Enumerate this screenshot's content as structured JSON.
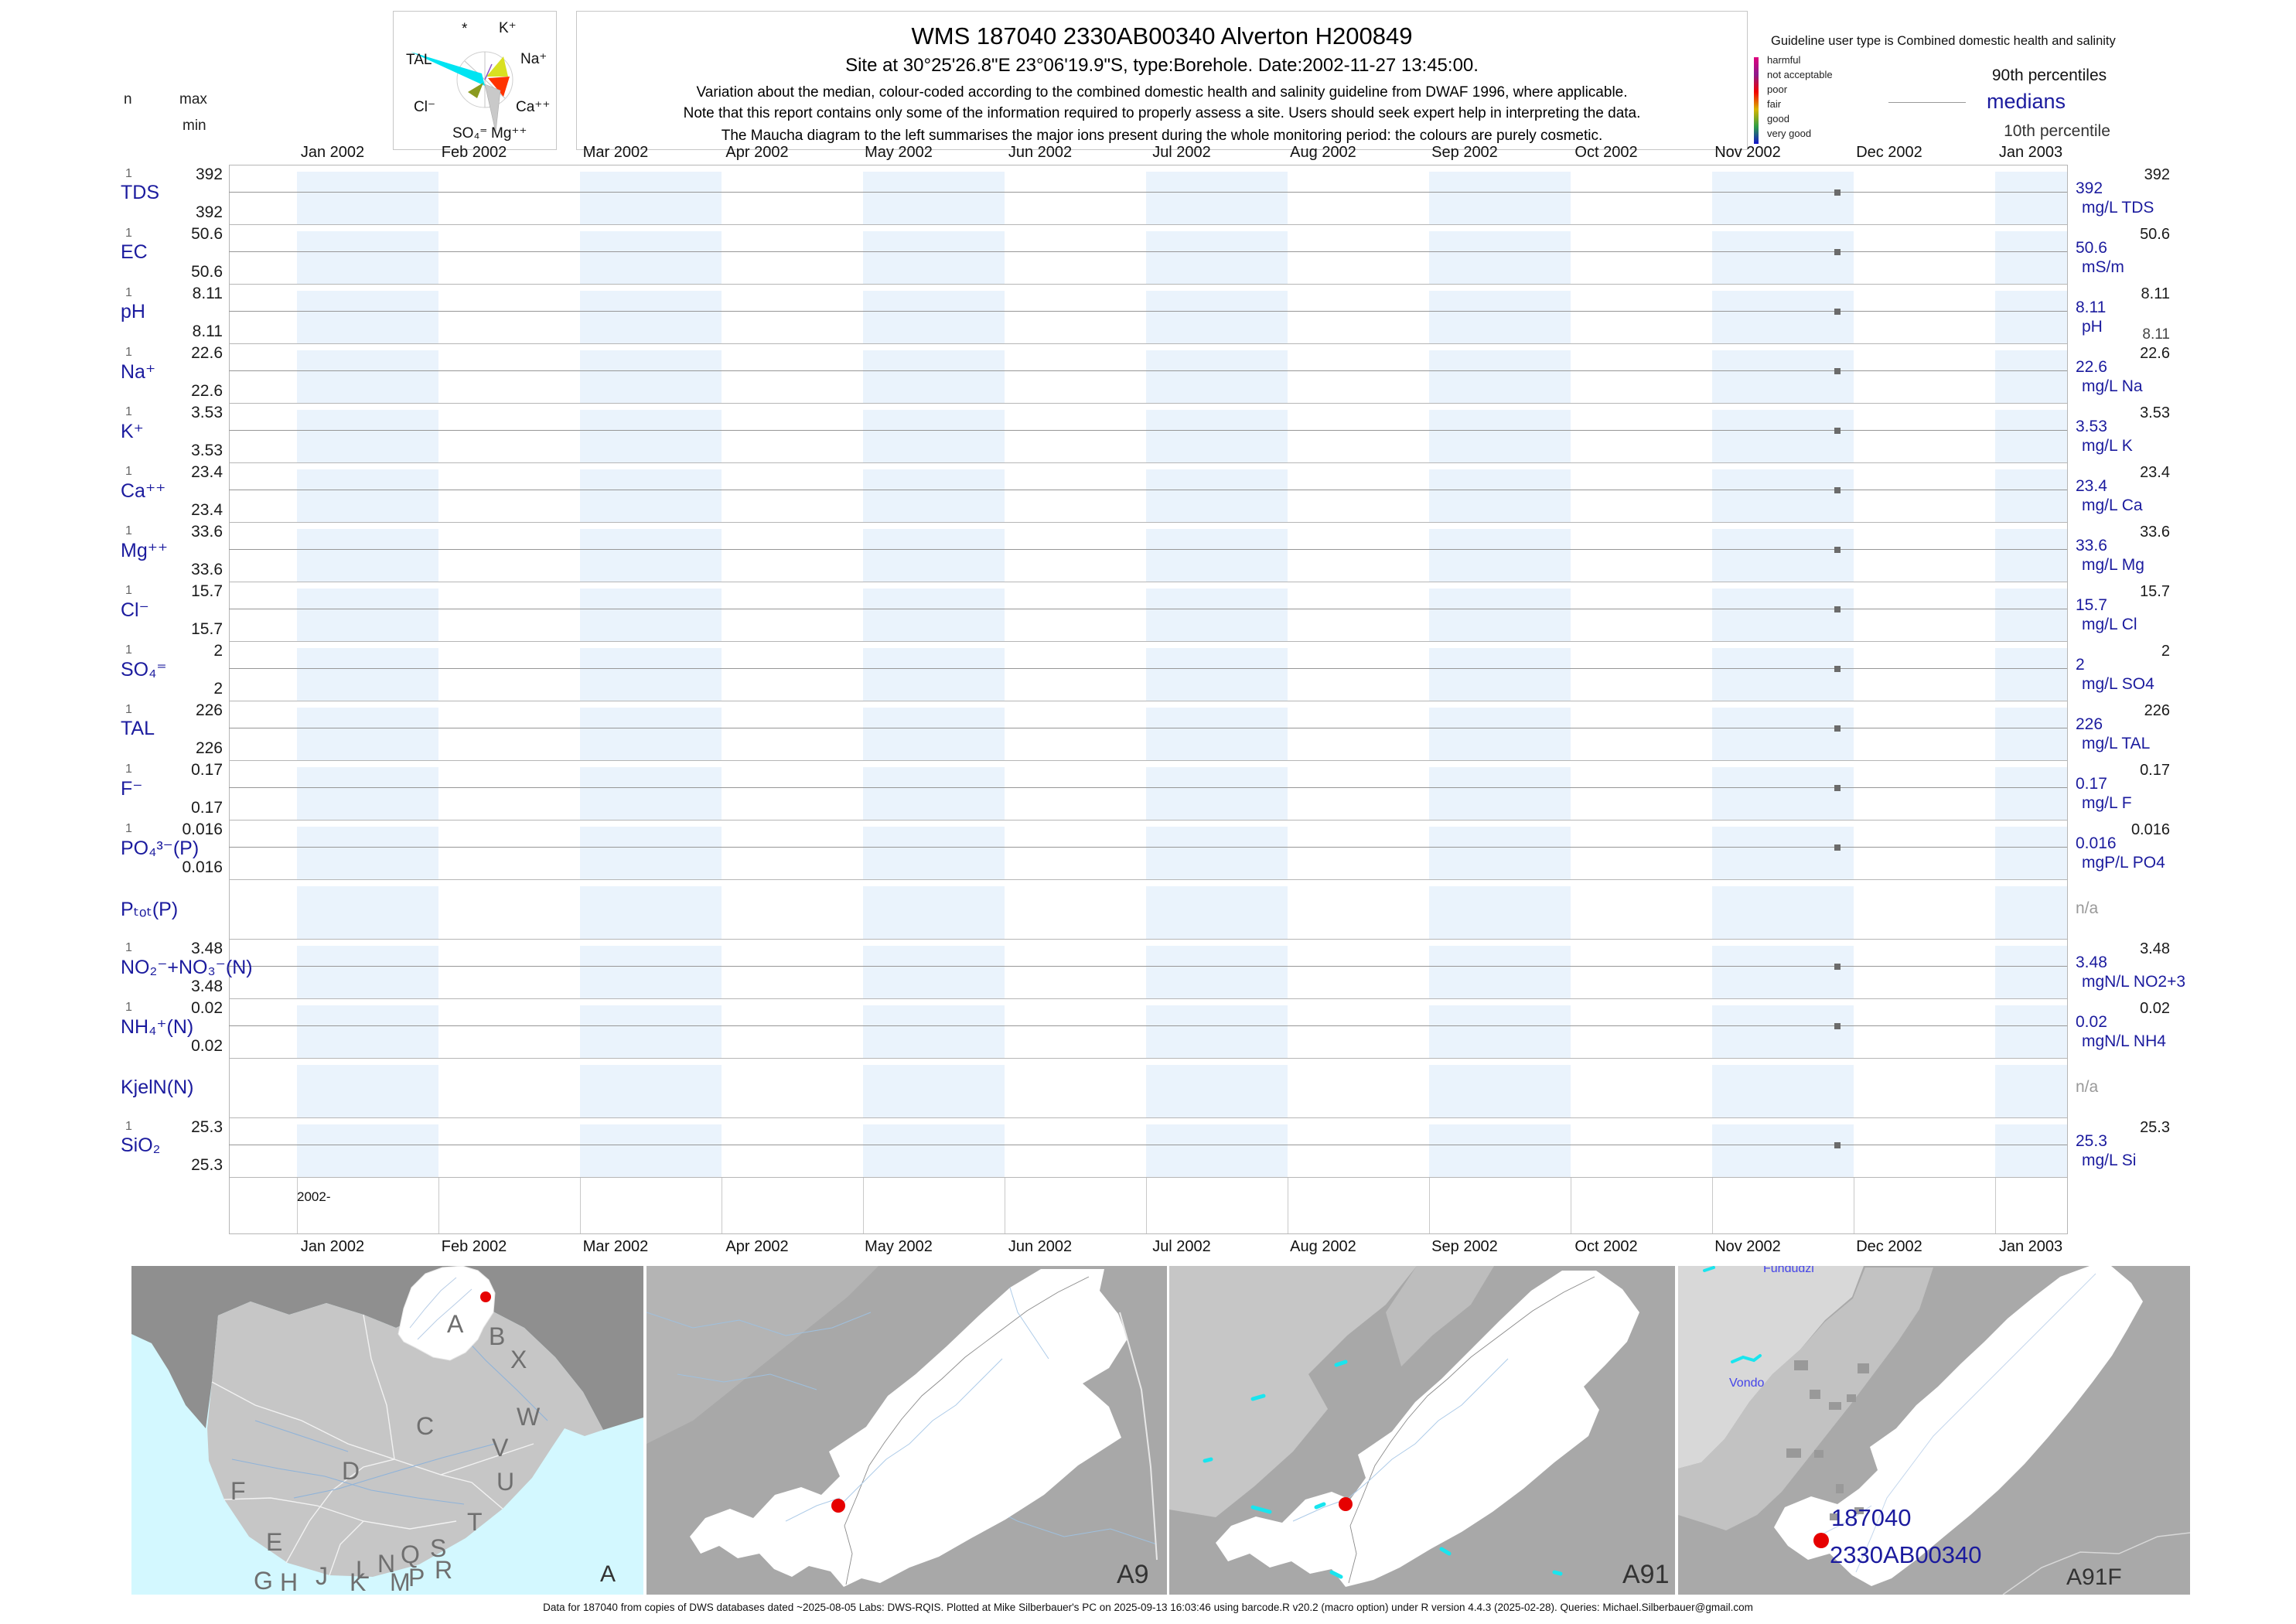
{
  "header": {
    "title": "WMS 187040 2330AB00340 Alverton H200849",
    "subtitle": "Site at 30°25'26.8\"E 23°06'19.9\"S, type:Borehole. Date:2002-11-27 13:45:00.",
    "note1": "Variation about the median,  colour-coded according to the combined domestic health and salinity guideline from DWAF 1996, where applicable.",
    "note2": "Note that this report contains only some of the information required to properly assess a site. Users should seek expert help in interpreting the data.",
    "note3": "The Maucha diagram to the left summarises the major ions present during the whole monitoring period: the colours are purely cosmetic."
  },
  "stats_header": {
    "n": "n",
    "max": "max",
    "min": "min"
  },
  "maucha": {
    "ions": [
      "*",
      "K⁺",
      "TAL",
      "Na⁺",
      "Cl⁻",
      "Ca⁺⁺",
      "SO₄⁼",
      "Mg⁺⁺"
    ]
  },
  "guideline": {
    "text": "Guideline user type is Combined domestic health and salinity",
    "classes": [
      {
        "label": "harmful",
        "color": "#e0007d"
      },
      {
        "label": "not acceptable",
        "color": "#8c1a8c"
      },
      {
        "label": "poor",
        "color": "#f20000"
      },
      {
        "label": "fair",
        "color": "#d9b400"
      },
      {
        "label": "good",
        "color": "#2e9e44"
      },
      {
        "label": "very good",
        "color": "#1414cc"
      }
    ],
    "p90_label": "90th percentiles",
    "median_label": "medians",
    "p10_label": "10th percentile"
  },
  "chart_data": {
    "type": "scatter",
    "title": "WMS 187040 2330AB00340 Alverton H200849",
    "sample_date": "2002-11-27",
    "sample_time": "13:45:00",
    "axis_note": "2002-",
    "x_labels": [
      "Jan 2002",
      "Feb 2002",
      "Mar 2002",
      "Apr 2002",
      "May 2002",
      "Jun 2002",
      "Jul 2002",
      "Aug 2002",
      "Sep 2002",
      "Oct 2002",
      "Nov 2002",
      "Dec 2002",
      "Jan 2003"
    ],
    "legend_position": "top-right",
    "series": [
      {
        "label": "TDS",
        "n": "1",
        "max": "392",
        "min": "392",
        "p90": "392",
        "median": "392",
        "unit": "mg/L TDS",
        "value": 392
      },
      {
        "label": "EC",
        "n": "1",
        "max": "50.6",
        "min": "50.6",
        "p90": "50.6",
        "median": "50.6",
        "unit": "mS/m",
        "value": 50.6
      },
      {
        "label": "pH",
        "n": "1",
        "max": "8.11",
        "min": "8.11",
        "p90": "8.11",
        "median": "8.11",
        "p10": "8.11",
        "unit": "pH",
        "value": 8.11
      },
      {
        "label": "Na⁺",
        "n": "1",
        "max": "22.6",
        "min": "22.6",
        "p90": "22.6",
        "median": "22.6",
        "unit": "mg/L Na",
        "value": 22.6
      },
      {
        "label": "K⁺",
        "n": "1",
        "max": "3.53",
        "min": "3.53",
        "p90": "3.53",
        "median": "3.53",
        "unit": "mg/L K",
        "value": 3.53
      },
      {
        "label": "Ca⁺⁺",
        "n": "1",
        "max": "23.4",
        "min": "23.4",
        "p90": "23.4",
        "median": "23.4",
        "unit": "mg/L Ca",
        "value": 23.4
      },
      {
        "label": "Mg⁺⁺",
        "n": "1",
        "max": "33.6",
        "min": "33.6",
        "p90": "33.6",
        "median": "33.6",
        "unit": "mg/L Mg",
        "value": 33.6
      },
      {
        "label": "Cl⁻",
        "n": "1",
        "max": "15.7",
        "min": "15.7",
        "p90": "15.7",
        "median": "15.7",
        "unit": "mg/L Cl",
        "value": 15.7
      },
      {
        "label": "SO₄⁼",
        "n": "1",
        "max": "2",
        "min": "2",
        "p90": "2",
        "median": "2",
        "unit": "mg/L SO4",
        "value": 2
      },
      {
        "label": "TAL",
        "n": "1",
        "max": "226",
        "min": "226",
        "p90": "226",
        "median": "226",
        "unit": "mg/L TAL",
        "value": 226
      },
      {
        "label": "F⁻",
        "n": "1",
        "max": "0.17",
        "min": "0.17",
        "p90": "0.17",
        "median": "0.17",
        "unit": "mg/L F",
        "value": 0.17
      },
      {
        "label": "PO₄³⁻(P)",
        "n": "1",
        "max": "0.016",
        "min": "0.016",
        "p90": "0.016",
        "median": "0.016",
        "unit": "mgP/L PO4",
        "value": 0.016
      },
      {
        "label": "Pₜₒₜ(P)",
        "na": "n/a"
      },
      {
        "label": "NO₂⁻+NO₃⁻(N)",
        "n": "1",
        "max": "3.48",
        "min": "3.48",
        "p90": "3.48",
        "median": "3.48",
        "unit": "mgN/L NO2+3",
        "value": 3.48
      },
      {
        "label": "NH₄⁺(N)",
        "n": "1",
        "max": "0.02",
        "min": "0.02",
        "p90": "0.02",
        "median": "0.02",
        "unit": "mgN/L NH4",
        "value": 0.02
      },
      {
        "label": "KjelN(N)",
        "na": "n/a"
      },
      {
        "label": "SiO₂",
        "n": "1",
        "max": "25.3",
        "min": "25.3",
        "p90": "25.3",
        "median": "25.3",
        "unit": "mg/L Si",
        "value": 25.3
      }
    ]
  },
  "maps": [
    {
      "code": "A",
      "region_letters": [
        "A",
        "B",
        "X",
        "C",
        "W",
        "V",
        "U",
        "D",
        "F",
        "E",
        "T",
        "S",
        "Q",
        "R",
        "P",
        "M",
        "N",
        "L",
        "K",
        "J",
        "H",
        "G"
      ]
    },
    {
      "code": "A9"
    },
    {
      "code": "A91"
    },
    {
      "code": "A91F",
      "station_id": "187040",
      "station_code": "2330AB00340",
      "place_labels": [
        "Vondo",
        "Fundudzi"
      ]
    }
  ],
  "footer": "Data for 187040 from copies of DWS databases dated ~2025-08-05 Labs: DWS-RQIS. Plotted at Mike Silberbauer's PC on 2025-09-13 16:03:46 using barcode.R v20.2 (macro option) under R version 4.4.3 (2025-02-28). Queries: Michael.Silberbauer@gmail.com"
}
